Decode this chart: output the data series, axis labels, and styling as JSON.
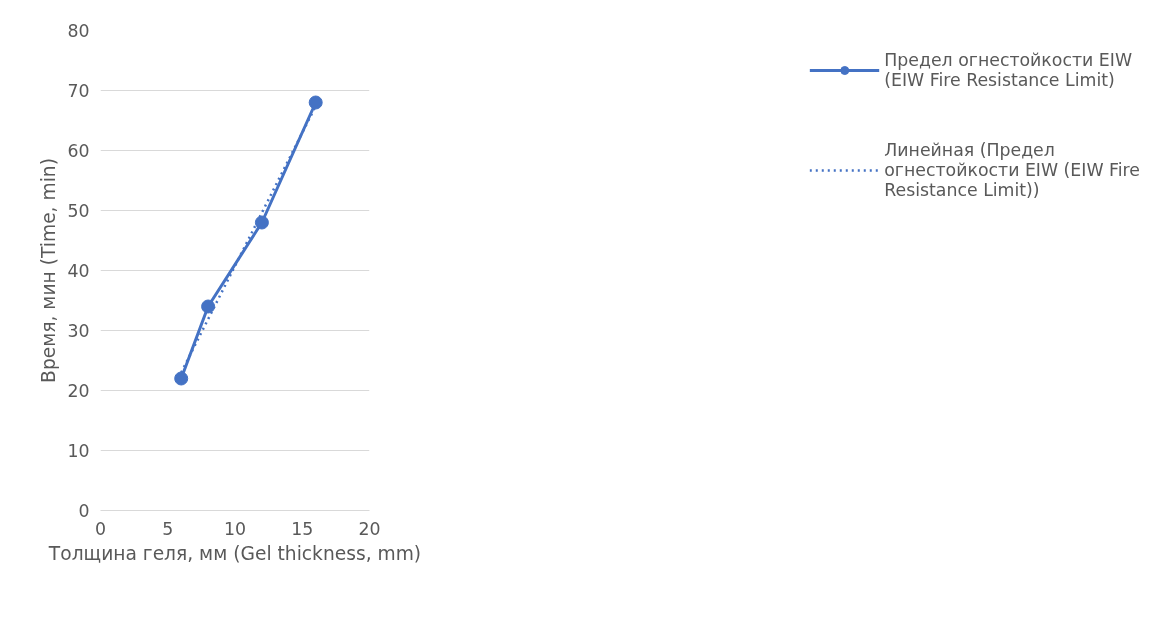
{
  "chart_data": {
    "type": "line",
    "xlabel": "Толщина геля, мм (Gel thickness, mm)",
    "ylabel": "Время, мин (Time, min)",
    "x": [
      6,
      8,
      12,
      16
    ],
    "series": [
      {
        "name": "Предел огнестойкости EIW (EIW Fire Resistance Limit)",
        "color": "#4472c4",
        "values": [
          22,
          34,
          48,
          68
        ],
        "marker": "circle",
        "line_style": "solid"
      },
      {
        "name": "Линейная (Предел огнестойкости EIW (EIW Fire Resistance Limit))",
        "color": "#4472c4",
        "type": "line",
        "x": [
          6,
          16
        ],
        "values": [
          23.0,
          67.4
        ],
        "marker": "none",
        "line_style": "dotted"
      }
    ],
    "xlim": [
      0,
      20
    ],
    "xticks": [
      0,
      5,
      10,
      15,
      20
    ],
    "ylim": [
      0,
      80
    ],
    "yticks": [
      0,
      10,
      20,
      30,
      40,
      50,
      60,
      70,
      80
    ],
    "grid": "y",
    "legend": "right"
  }
}
